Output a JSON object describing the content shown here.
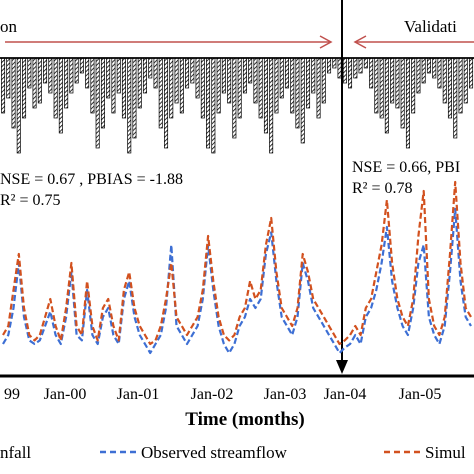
{
  "chart_data": {
    "type": "line",
    "periods": {
      "calibration": "on",
      "validation": "Validati"
    },
    "stats": {
      "calibration": {
        "line1": "NSE = 0.67 , PBIAS = -1.88",
        "line2": "R² =  0.75"
      },
      "validation": {
        "line1": "NSE = 0.66, PBI",
        "line2": "R² =  0.78"
      }
    },
    "xlabel": "Time (months)",
    "x_ticks": [
      "99",
      "Jan-00",
      "Jan-01",
      "Jan-02",
      "Jan-03",
      "Jan-04",
      "Jan-05"
    ],
    "legend": [
      "nfall",
      "Observed streamflow",
      "Simul"
    ],
    "colors": {
      "observed": "#3d6fd4",
      "simulated": "#d2511f",
      "rainfall": "#000000"
    },
    "rainfall_depth": [
      0.55,
      0.4,
      0.7,
      0.95,
      0.6,
      0.3,
      0.5,
      0.45,
      0.25,
      0.35,
      0.6,
      0.75,
      0.5,
      0.35,
      0.25,
      0.15,
      0.3,
      0.55,
      0.9,
      0.7,
      0.4,
      0.55,
      0.35,
      0.6,
      0.95,
      0.8,
      0.5,
      0.35,
      0.2,
      0.3,
      0.7,
      0.9,
      0.6,
      0.45,
      0.55,
      0.3,
      0.25,
      0.4,
      0.6,
      0.9,
      0.95,
      0.55,
      0.35,
      0.45,
      0.8,
      0.6,
      0.35,
      0.25,
      0.45,
      0.6,
      0.75,
      0.95,
      0.55,
      0.4,
      0.3,
      0.55,
      0.7,
      0.85,
      0.5,
      0.35,
      0.6,
      0.45,
      0.15,
      0.1,
      0.2,
      0.25,
      0.3,
      0.2,
      0.15,
      0.1,
      0.3,
      0.55,
      0.6,
      0.75,
      0.45,
      0.5,
      0.7,
      0.9,
      0.55,
      0.35,
      0.25,
      0.15,
      0.2,
      0.3,
      0.45,
      0.6,
      0.8,
      0.55,
      0.45,
      0.3
    ],
    "observed_streamflow": [
      0.1,
      0.15,
      0.3,
      0.55,
      0.25,
      0.12,
      0.1,
      0.12,
      0.2,
      0.28,
      0.15,
      0.1,
      0.25,
      0.5,
      0.15,
      0.12,
      0.4,
      0.15,
      0.1,
      0.25,
      0.3,
      0.15,
      0.1,
      0.35,
      0.45,
      0.25,
      0.15,
      0.1,
      0.05,
      0.1,
      0.15,
      0.3,
      0.65,
      0.2,
      0.15,
      0.1,
      0.15,
      0.2,
      0.35,
      0.65,
      0.4,
      0.2,
      0.1,
      0.05,
      0.1,
      0.2,
      0.25,
      0.35,
      0.3,
      0.35,
      0.6,
      0.72,
      0.45,
      0.25,
      0.2,
      0.15,
      0.25,
      0.55,
      0.45,
      0.3,
      0.25,
      0.2,
      0.15,
      0.1,
      0.05,
      0.08,
      0.1,
      0.15,
      0.1,
      0.25,
      0.3,
      0.4,
      0.55,
      0.75,
      0.45,
      0.3,
      0.2,
      0.15,
      0.3,
      0.55,
      0.65,
      0.25,
      0.15,
      0.1,
      0.2,
      0.5,
      0.85,
      0.45,
      0.25,
      0.2
    ],
    "simulated_streamflow": [
      0.15,
      0.2,
      0.4,
      0.6,
      0.3,
      0.15,
      0.12,
      0.15,
      0.25,
      0.35,
      0.2,
      0.12,
      0.3,
      0.55,
      0.2,
      0.15,
      0.45,
      0.2,
      0.12,
      0.3,
      0.35,
      0.2,
      0.12,
      0.4,
      0.5,
      0.3,
      0.2,
      0.15,
      0.1,
      0.12,
      0.2,
      0.35,
      0.55,
      0.25,
      0.2,
      0.15,
      0.2,
      0.25,
      0.4,
      0.7,
      0.45,
      0.25,
      0.15,
      0.12,
      0.15,
      0.25,
      0.3,
      0.45,
      0.35,
      0.4,
      0.65,
      0.8,
      0.5,
      0.3,
      0.25,
      0.2,
      0.3,
      0.6,
      0.5,
      0.35,
      0.3,
      0.25,
      0.2,
      0.15,
      0.1,
      0.12,
      0.15,
      0.2,
      0.15,
      0.3,
      0.35,
      0.5,
      0.65,
      0.9,
      0.55,
      0.35,
      0.25,
      0.2,
      0.35,
      0.7,
      0.95,
      0.35,
      0.2,
      0.15,
      0.25,
      0.6,
      1.0,
      0.55,
      0.3,
      0.25
    ]
  }
}
